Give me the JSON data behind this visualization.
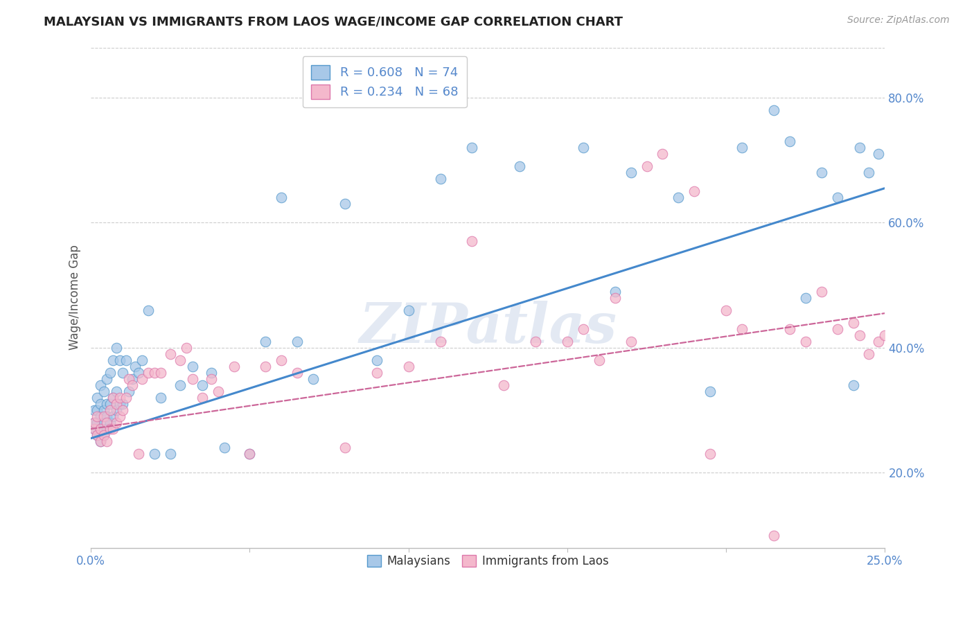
{
  "title": "MALAYSIAN VS IMMIGRANTS FROM LAOS WAGE/INCOME GAP CORRELATION CHART",
  "source": "Source: ZipAtlas.com",
  "ylabel": "Wage/Income Gap",
  "xlim": [
    0.0,
    0.25
  ],
  "ylim": [
    0.08,
    0.88
  ],
  "xticks": [
    0.0,
    0.05,
    0.1,
    0.15,
    0.2,
    0.25
  ],
  "yticks_right": [
    0.2,
    0.4,
    0.6,
    0.8
  ],
  "ytick_labels_right": [
    "20.0%",
    "40.0%",
    "60.0%",
    "80.0%"
  ],
  "xtick_labels": [
    "0.0%",
    "",
    "",
    "",
    "",
    "25.0%"
  ],
  "blue_color": "#a8c8e8",
  "pink_color": "#f4b8cc",
  "blue_edge_color": "#5599cc",
  "pink_edge_color": "#dd77aa",
  "blue_line_color": "#4488cc",
  "pink_line_color": "#cc6699",
  "label_color": "#5588cc",
  "R_blue": 0.608,
  "N_blue": 74,
  "R_pink": 0.234,
  "N_pink": 68,
  "blue_trend_x": [
    0.0,
    0.25
  ],
  "blue_trend_y": [
    0.255,
    0.655
  ],
  "pink_trend_x": [
    0.0,
    0.25
  ],
  "pink_trend_y": [
    0.27,
    0.455
  ],
  "blue_scatter_x": [
    0.001,
    0.001,
    0.001,
    0.002,
    0.002,
    0.002,
    0.002,
    0.003,
    0.003,
    0.003,
    0.003,
    0.003,
    0.004,
    0.004,
    0.004,
    0.004,
    0.005,
    0.005,
    0.005,
    0.005,
    0.006,
    0.006,
    0.006,
    0.007,
    0.007,
    0.007,
    0.008,
    0.008,
    0.008,
    0.009,
    0.009,
    0.01,
    0.01,
    0.011,
    0.012,
    0.013,
    0.014,
    0.015,
    0.016,
    0.018,
    0.02,
    0.022,
    0.025,
    0.028,
    0.032,
    0.035,
    0.038,
    0.042,
    0.05,
    0.055,
    0.06,
    0.065,
    0.07,
    0.08,
    0.09,
    0.1,
    0.11,
    0.12,
    0.135,
    0.155,
    0.165,
    0.17,
    0.185,
    0.195,
    0.205,
    0.215,
    0.22,
    0.225,
    0.23,
    0.235,
    0.24,
    0.242,
    0.245,
    0.248
  ],
  "blue_scatter_y": [
    0.27,
    0.28,
    0.3,
    0.26,
    0.28,
    0.3,
    0.32,
    0.25,
    0.27,
    0.29,
    0.31,
    0.34,
    0.26,
    0.28,
    0.3,
    0.33,
    0.27,
    0.29,
    0.31,
    0.35,
    0.28,
    0.31,
    0.36,
    0.29,
    0.32,
    0.38,
    0.3,
    0.33,
    0.4,
    0.31,
    0.38,
    0.31,
    0.36,
    0.38,
    0.33,
    0.35,
    0.37,
    0.36,
    0.38,
    0.46,
    0.23,
    0.32,
    0.23,
    0.34,
    0.37,
    0.34,
    0.36,
    0.24,
    0.23,
    0.41,
    0.64,
    0.41,
    0.35,
    0.63,
    0.38,
    0.46,
    0.67,
    0.72,
    0.69,
    0.72,
    0.49,
    0.68,
    0.64,
    0.33,
    0.72,
    0.78,
    0.73,
    0.48,
    0.68,
    0.64,
    0.34,
    0.72,
    0.68,
    0.71
  ],
  "pink_scatter_x": [
    0.001,
    0.001,
    0.002,
    0.002,
    0.003,
    0.003,
    0.004,
    0.004,
    0.005,
    0.005,
    0.006,
    0.006,
    0.007,
    0.007,
    0.008,
    0.008,
    0.009,
    0.009,
    0.01,
    0.011,
    0.012,
    0.013,
    0.015,
    0.016,
    0.018,
    0.02,
    0.022,
    0.025,
    0.028,
    0.03,
    0.032,
    0.035,
    0.038,
    0.04,
    0.045,
    0.05,
    0.055,
    0.06,
    0.065,
    0.08,
    0.09,
    0.1,
    0.11,
    0.12,
    0.13,
    0.14,
    0.15,
    0.155,
    0.16,
    0.165,
    0.17,
    0.175,
    0.18,
    0.19,
    0.195,
    0.2,
    0.205,
    0.215,
    0.22,
    0.225,
    0.23,
    0.235,
    0.24,
    0.242,
    0.245,
    0.248,
    0.25,
    0.252
  ],
  "pink_scatter_y": [
    0.27,
    0.28,
    0.26,
    0.29,
    0.25,
    0.27,
    0.26,
    0.29,
    0.25,
    0.28,
    0.27,
    0.3,
    0.27,
    0.32,
    0.28,
    0.31,
    0.29,
    0.32,
    0.3,
    0.32,
    0.35,
    0.34,
    0.23,
    0.35,
    0.36,
    0.36,
    0.36,
    0.39,
    0.38,
    0.4,
    0.35,
    0.32,
    0.35,
    0.33,
    0.37,
    0.23,
    0.37,
    0.38,
    0.36,
    0.24,
    0.36,
    0.37,
    0.41,
    0.57,
    0.34,
    0.41,
    0.41,
    0.43,
    0.38,
    0.48,
    0.41,
    0.69,
    0.71,
    0.65,
    0.23,
    0.46,
    0.43,
    0.1,
    0.43,
    0.41,
    0.49,
    0.43,
    0.44,
    0.42,
    0.39,
    0.41,
    0.42,
    0.43
  ],
  "watermark_text": "ZIPatlas",
  "legend_blue_label": "Malaysians",
  "legend_pink_label": "Immigrants from Laos",
  "background_color": "#ffffff",
  "grid_color": "#cccccc",
  "title_fontsize": 13,
  "source_fontsize": 10,
  "tick_fontsize": 12,
  "ylabel_fontsize": 12
}
